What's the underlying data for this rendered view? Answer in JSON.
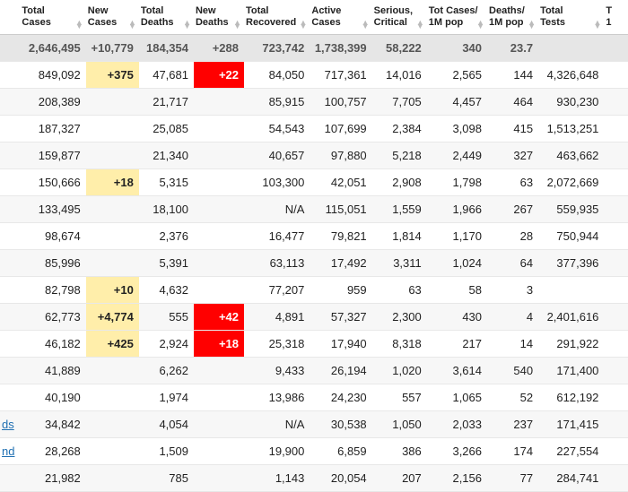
{
  "columns": [
    {
      "label": ""
    },
    {
      "label": "Total\nCases"
    },
    {
      "label": "New\nCases"
    },
    {
      "label": "Total\nDeaths"
    },
    {
      "label": "New\nDeaths"
    },
    {
      "label": "Total\nRecovered"
    },
    {
      "label": "Active\nCases"
    },
    {
      "label": "Serious,\nCritical"
    },
    {
      "label": "Tot Cases/\n1M pop"
    },
    {
      "label": "Deaths/\n1M pop"
    },
    {
      "label": "Total\nTests"
    },
    {
      "label": "T\n1"
    }
  ],
  "world_row": {
    "total_cases": "2,646,495",
    "new_cases": "+10,779",
    "total_deaths": "184,354",
    "new_deaths": "+288",
    "total_recovered": "723,742",
    "active_cases": "1,738,399",
    "serious_critical": "58,222",
    "cases_per_m": "340",
    "deaths_per_m": "23.7",
    "total_tests": ""
  },
  "rows": [
    {
      "label": "",
      "total_cases": "849,092",
      "new_cases": "+375",
      "nc_hl": "yellow",
      "total_deaths": "47,681",
      "new_deaths": "+22",
      "nd_hl": "red",
      "total_recovered": "84,050",
      "active_cases": "717,361",
      "serious_critical": "14,016",
      "cases_per_m": "2,565",
      "deaths_per_m": "144",
      "total_tests": "4,326,648"
    },
    {
      "label": "",
      "total_cases": "208,389",
      "new_cases": "",
      "total_deaths": "21,717",
      "new_deaths": "",
      "total_recovered": "85,915",
      "active_cases": "100,757",
      "serious_critical": "7,705",
      "cases_per_m": "4,457",
      "deaths_per_m": "464",
      "total_tests": "930,230"
    },
    {
      "label": "",
      "total_cases": "187,327",
      "new_cases": "",
      "total_deaths": "25,085",
      "new_deaths": "",
      "total_recovered": "54,543",
      "active_cases": "107,699",
      "serious_critical": "2,384",
      "cases_per_m": "3,098",
      "deaths_per_m": "415",
      "total_tests": "1,513,251"
    },
    {
      "label": "",
      "total_cases": "159,877",
      "new_cases": "",
      "total_deaths": "21,340",
      "new_deaths": "",
      "total_recovered": "40,657",
      "active_cases": "97,880",
      "serious_critical": "5,218",
      "cases_per_m": "2,449",
      "deaths_per_m": "327",
      "total_tests": "463,662"
    },
    {
      "label": "",
      "total_cases": "150,666",
      "new_cases": "+18",
      "nc_hl": "yellow",
      "total_deaths": "5,315",
      "new_deaths": "",
      "total_recovered": "103,300",
      "active_cases": "42,051",
      "serious_critical": "2,908",
      "cases_per_m": "1,798",
      "deaths_per_m": "63",
      "total_tests": "2,072,669"
    },
    {
      "label": "",
      "total_cases": "133,495",
      "new_cases": "",
      "total_deaths": "18,100",
      "new_deaths": "",
      "total_recovered": "N/A",
      "active_cases": "115,051",
      "serious_critical": "1,559",
      "cases_per_m": "1,966",
      "deaths_per_m": "267",
      "total_tests": "559,935"
    },
    {
      "label": "",
      "total_cases": "98,674",
      "new_cases": "",
      "total_deaths": "2,376",
      "new_deaths": "",
      "total_recovered": "16,477",
      "active_cases": "79,821",
      "serious_critical": "1,814",
      "cases_per_m": "1,170",
      "deaths_per_m": "28",
      "total_tests": "750,944"
    },
    {
      "label": "",
      "total_cases": "85,996",
      "new_cases": "",
      "total_deaths": "5,391",
      "new_deaths": "",
      "total_recovered": "63,113",
      "active_cases": "17,492",
      "serious_critical": "3,311",
      "cases_per_m": "1,024",
      "deaths_per_m": "64",
      "total_tests": "377,396"
    },
    {
      "label": "",
      "total_cases": "82,798",
      "new_cases": "+10",
      "nc_hl": "yellow",
      "total_deaths": "4,632",
      "new_deaths": "",
      "total_recovered": "77,207",
      "active_cases": "959",
      "serious_critical": "63",
      "cases_per_m": "58",
      "deaths_per_m": "3",
      "total_tests": ""
    },
    {
      "label": "",
      "total_cases": "62,773",
      "new_cases": "+4,774",
      "nc_hl": "yellow",
      "total_deaths": "555",
      "new_deaths": "+42",
      "nd_hl": "red",
      "total_recovered": "4,891",
      "active_cases": "57,327",
      "serious_critical": "2,300",
      "cases_per_m": "430",
      "deaths_per_m": "4",
      "total_tests": "2,401,616"
    },
    {
      "label": "",
      "total_cases": "46,182",
      "new_cases": "+425",
      "nc_hl": "yellow",
      "total_deaths": "2,924",
      "new_deaths": "+18",
      "nd_hl": "red",
      "total_recovered": "25,318",
      "active_cases": "17,940",
      "serious_critical": "8,318",
      "cases_per_m": "217",
      "deaths_per_m": "14",
      "total_tests": "291,922"
    },
    {
      "label": "",
      "total_cases": "41,889",
      "new_cases": "",
      "total_deaths": "6,262",
      "new_deaths": "",
      "total_recovered": "9,433",
      "active_cases": "26,194",
      "serious_critical": "1,020",
      "cases_per_m": "3,614",
      "deaths_per_m": "540",
      "total_tests": "171,400"
    },
    {
      "label": "",
      "total_cases": "40,190",
      "new_cases": "",
      "total_deaths": "1,974",
      "new_deaths": "",
      "total_recovered": "13,986",
      "active_cases": "24,230",
      "serious_critical": "557",
      "cases_per_m": "1,065",
      "deaths_per_m": "52",
      "total_tests": "612,192"
    },
    {
      "label": "ds",
      "link": true,
      "total_cases": "34,842",
      "new_cases": "",
      "total_deaths": "4,054",
      "new_deaths": "",
      "total_recovered": "N/A",
      "active_cases": "30,538",
      "serious_critical": "1,050",
      "cases_per_m": "2,033",
      "deaths_per_m": "237",
      "total_tests": "171,415"
    },
    {
      "label": "nd",
      "link": true,
      "total_cases": "28,268",
      "new_cases": "",
      "total_deaths": "1,509",
      "new_deaths": "",
      "total_recovered": "19,900",
      "active_cases": "6,859",
      "serious_critical": "386",
      "cases_per_m": "3,266",
      "deaths_per_m": "174",
      "total_tests": "227,554"
    },
    {
      "label": "",
      "total_cases": "21,982",
      "new_cases": "",
      "total_deaths": "785",
      "new_deaths": "",
      "total_recovered": "1,143",
      "active_cases": "20,054",
      "serious_critical": "207",
      "cases_per_m": "2,156",
      "deaths_per_m": "77",
      "total_tests": "284,741"
    }
  ],
  "colors": {
    "highlight_yellow": "#ffeeaa",
    "highlight_red": "#ff0000",
    "world_row_bg": "#e6e6e6",
    "even_row_bg": "#f7f7f7",
    "border": "#e8e8e8",
    "link": "#1f6fb2"
  }
}
